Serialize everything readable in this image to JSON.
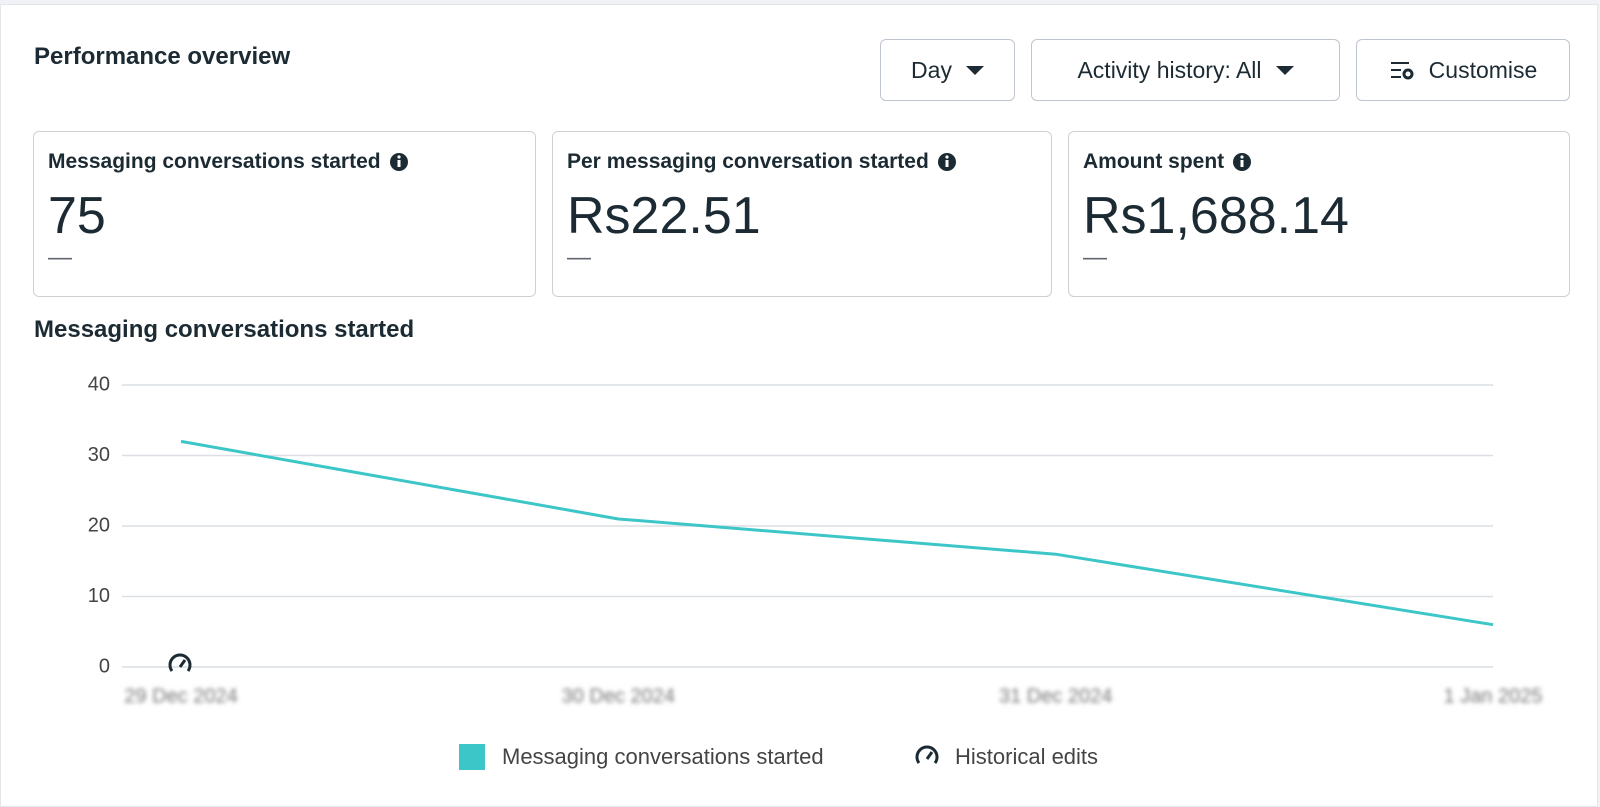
{
  "header": {
    "title": "Performance overview"
  },
  "controls": {
    "period": "Day",
    "activity": "Activity history: All",
    "customise": "Customise"
  },
  "metrics": [
    {
      "label": "Messaging conversations started",
      "value": "75",
      "change": "—"
    },
    {
      "label": "Per messaging conversation started",
      "value": "Rs22.51",
      "change": "—"
    },
    {
      "label": "Amount spent",
      "value": "Rs1,688.14",
      "change": "—"
    }
  ],
  "chart_data": {
    "type": "line",
    "title": "Messaging conversations started",
    "categories": [
      "29 Dec 2024",
      "30 Dec 2024",
      "31 Dec 2024",
      "1 Jan 2025"
    ],
    "series": [
      {
        "name": "Messaging conversations started",
        "color": "#3cc6c8",
        "values": [
          32,
          21,
          16,
          6
        ]
      }
    ],
    "ylim": [
      0,
      40
    ],
    "yticks": [
      0,
      10,
      20,
      30,
      40
    ],
    "grid": true,
    "annotation_legend": "Historical edits"
  }
}
